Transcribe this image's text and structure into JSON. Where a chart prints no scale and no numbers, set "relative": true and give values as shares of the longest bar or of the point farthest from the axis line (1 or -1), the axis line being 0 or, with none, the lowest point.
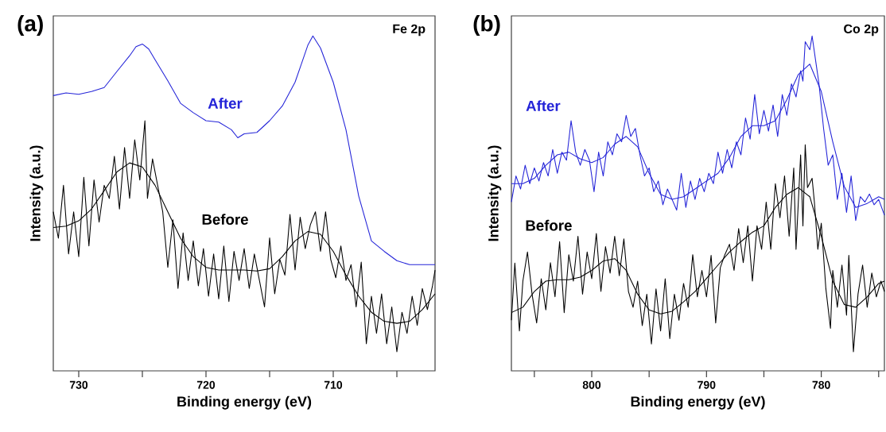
{
  "chart_data": [
    {
      "type": "line",
      "relative": true,
      "xlabel": "Binding energy (eV)",
      "ylabel": "Intensity (a.u.)",
      "annotations": [
        "(a)",
        "Fe 2p"
      ],
      "xlim": [
        732,
        702
      ],
      "xticks": [
        730,
        {
          "value": 725,
          "label": null
        },
        720,
        {
          "value": 715,
          "label": null
        },
        710,
        {
          "value": 705,
          "label": null
        }
      ],
      "series": [
        {
          "name": "After",
          "color": "#2424d8",
          "x": [
            732,
            731,
            730,
            729,
            728,
            727,
            726,
            725.5,
            725,
            724.5,
            724,
            723,
            722,
            721,
            720,
            719,
            718,
            717.5,
            717,
            716,
            715,
            714,
            713,
            712.5,
            712,
            711.6,
            711,
            710,
            709,
            708,
            707,
            706,
            705,
            704,
            703,
            702
          ],
          "values": [
            0.822,
            0.83,
            0.826,
            0.834,
            0.846,
            0.894,
            0.941,
            0.968,
            0.976,
            0.961,
            0.929,
            0.866,
            0.799,
            0.771,
            0.747,
            0.743,
            0.72,
            0.696,
            0.708,
            0.712,
            0.747,
            0.791,
            0.862,
            0.917,
            0.972,
            1.0,
            0.964,
            0.862,
            0.72,
            0.522,
            0.388,
            0.357,
            0.329,
            0.317,
            0.317,
            0.317
          ]
        },
        {
          "name": "Before",
          "color": "#000000",
          "x": [
            732,
            731.6,
            731.2,
            730.8,
            730.4,
            730,
            729.6,
            729.2,
            728.8,
            728.4,
            728,
            727.6,
            727.2,
            726.8,
            726.4,
            726,
            725.6,
            725.2,
            724.8,
            724.6,
            724.2,
            723.8,
            723.4,
            723,
            722.6,
            722.2,
            721.8,
            721.4,
            721,
            720.6,
            720.2,
            719.8,
            719.4,
            719,
            718.6,
            718.2,
            717.8,
            717.4,
            717,
            716.6,
            716.2,
            715.8,
            715.4,
            715,
            714.6,
            714.2,
            713.8,
            713.4,
            713,
            712.6,
            712.2,
            711.8,
            711.4,
            711,
            710.6,
            710.2,
            709.8,
            709.4,
            709,
            708.6,
            708.2,
            707.8,
            707.4,
            707,
            706.6,
            706.2,
            705.8,
            705.4,
            705,
            704.6,
            704.2,
            703.8,
            703.4,
            703,
            702.6,
            702.2,
            702
          ],
          "values": [
            0.475,
            0.396,
            0.554,
            0.349,
            0.475,
            0.341,
            0.578,
            0.373,
            0.57,
            0.444,
            0.554,
            0.515,
            0.641,
            0.483,
            0.667,
            0.515,
            0.69,
            0.57,
            0.747,
            0.515,
            0.633,
            0.554,
            0.475,
            0.309,
            0.451,
            0.246,
            0.412,
            0.27,
            0.388,
            0.254,
            0.365,
            0.223,
            0.349,
            0.215,
            0.373,
            0.207,
            0.357,
            0.27,
            0.365,
            0.246,
            0.349,
            0.27,
            0.191,
            0.397,
            0.23,
            0.333,
            0.286,
            0.467,
            0.301,
            0.459,
            0.365,
            0.436,
            0.475,
            0.357,
            0.475,
            0.333,
            0.278,
            0.373,
            0.27,
            0.317,
            0.191,
            0.325,
            0.081,
            0.223,
            0.112,
            0.23,
            0.081,
            0.191,
            0.057,
            0.175,
            0.112,
            0.223,
            0.136,
            0.246,
            0.183,
            0.254,
            0.301
          ]
        },
        {
          "color": "#000000",
          "x": [
            732,
            731,
            730,
            729,
            728,
            727,
            726,
            725,
            724,
            723,
            722,
            721,
            720,
            719,
            718,
            717,
            716,
            715,
            714,
            713,
            712,
            711,
            710,
            709,
            708,
            707,
            706,
            705,
            704,
            703,
            702
          ],
          "values": [
            0.428,
            0.432,
            0.448,
            0.483,
            0.538,
            0.594,
            0.621,
            0.609,
            0.554,
            0.475,
            0.396,
            0.341,
            0.309,
            0.301,
            0.301,
            0.301,
            0.298,
            0.305,
            0.341,
            0.388,
            0.416,
            0.408,
            0.357,
            0.286,
            0.223,
            0.175,
            0.148,
            0.142,
            0.148,
            0.183,
            0.23
          ]
        }
      ]
    },
    {
      "type": "line",
      "relative": true,
      "xlabel": "Binding energy (eV)",
      "ylabel": "Intensity (a.u.)",
      "annotations": [
        "(b)",
        "Co 2p"
      ],
      "xlim": [
        807,
        774.5
      ],
      "xticks": [
        {
          "value": 805,
          "label": null
        },
        800,
        {
          "value": 795,
          "label": null
        },
        790,
        {
          "value": 785,
          "label": null
        },
        780,
        {
          "value": 775,
          "label": null
        }
      ],
      "series": [
        {
          "name": "After",
          "color": "#2424d8",
          "x": [
            807,
            806.6,
            806.2,
            805.8,
            805.4,
            805,
            804.6,
            804.2,
            803.8,
            803.4,
            803,
            802.6,
            802.2,
            801.8,
            801.4,
            801,
            800.6,
            800.2,
            799.8,
            799.4,
            799,
            798.6,
            798.2,
            797.8,
            797.4,
            797,
            796.6,
            796.2,
            795.8,
            795.4,
            795,
            794.6,
            794.2,
            793.8,
            793.4,
            793,
            792.6,
            792.2,
            791.8,
            791.4,
            791,
            790.6,
            790.2,
            789.8,
            789.4,
            789,
            788.6,
            788.2,
            787.8,
            787.4,
            787,
            786.6,
            786.2,
            785.8,
            785.4,
            785,
            784.6,
            784.2,
            783.8,
            783.4,
            783,
            782.6,
            782.2,
            781.8,
            781.6,
            781.4,
            781,
            780.8,
            780.5,
            780.2,
            779.8,
            779.4,
            779,
            778.6,
            778.2,
            777.8,
            777.4,
            777,
            776.6,
            776.2,
            775.8,
            775.4,
            775,
            774.5
          ],
          "values": [
            0.504,
            0.582,
            0.543,
            0.614,
            0.559,
            0.606,
            0.567,
            0.622,
            0.582,
            0.661,
            0.59,
            0.653,
            0.629,
            0.747,
            0.653,
            0.614,
            0.661,
            0.629,
            0.535,
            0.653,
            0.582,
            0.684,
            0.645,
            0.708,
            0.684,
            0.763,
            0.7,
            0.724,
            0.645,
            0.582,
            0.606,
            0.535,
            0.567,
            0.496,
            0.543,
            0.512,
            0.48,
            0.59,
            0.488,
            0.567,
            0.512,
            0.575,
            0.535,
            0.59,
            0.559,
            0.653,
            0.59,
            0.661,
            0.606,
            0.684,
            0.645,
            0.755,
            0.692,
            0.825,
            0.708,
            0.778,
            0.716,
            0.794,
            0.7,
            0.825,
            0.763,
            0.857,
            0.818,
            0.896,
            0.865,
            0.983,
            0.959,
            1.0,
            0.928,
            0.857,
            0.724,
            0.614,
            0.645,
            0.512,
            0.59,
            0.473,
            0.582,
            0.449,
            0.52,
            0.504,
            0.528,
            0.496,
            0.512,
            0.465
          ]
        },
        {
          "color": "#2424d8",
          "x": [
            807,
            806,
            805,
            804,
            803,
            802,
            801,
            800,
            799,
            798,
            797,
            796,
            795,
            794,
            793,
            792,
            791,
            790,
            789,
            788,
            787,
            786,
            785,
            784,
            783,
            782,
            781,
            780,
            779,
            778,
            777,
            776,
            775,
            774.5
          ],
          "values": [
            0.559,
            0.559,
            0.575,
            0.614,
            0.645,
            0.653,
            0.633,
            0.622,
            0.637,
            0.677,
            0.7,
            0.669,
            0.59,
            0.527,
            0.512,
            0.52,
            0.543,
            0.567,
            0.59,
            0.637,
            0.7,
            0.732,
            0.732,
            0.747,
            0.81,
            0.885,
            0.916,
            0.834,
            0.684,
            0.551,
            0.488,
            0.5,
            0.52,
            0.512
          ]
        },
        {
          "name": "Before",
          "color": "#000000",
          "x": [
            807,
            806.7,
            806.3,
            806,
            805.6,
            805.2,
            804.8,
            804.4,
            804,
            803.6,
            803.2,
            802.8,
            802.4,
            802,
            801.6,
            801.2,
            800.8,
            800.4,
            800,
            799.6,
            799.2,
            798.8,
            798.4,
            798,
            797.6,
            797.2,
            796.8,
            796.4,
            796,
            795.6,
            795.2,
            794.8,
            794.4,
            794,
            793.6,
            793.2,
            792.8,
            792.4,
            792,
            791.6,
            791.2,
            790.8,
            790.4,
            790,
            789.6,
            789.2,
            788.8,
            788.4,
            788,
            787.6,
            787.2,
            786.8,
            786.4,
            786,
            785.6,
            785.2,
            784.8,
            784.4,
            784,
            783.6,
            783.2,
            782.8,
            782.4,
            782.2,
            781.8,
            781.6,
            781.4,
            781.2,
            780.8,
            780.6,
            780.3,
            780,
            779.6,
            779.2,
            779,
            778.6,
            778.2,
            777.8,
            777.6,
            777.2,
            776.8,
            776.4,
            776,
            775.6,
            775.2,
            774.8,
            774.5
          ],
          "values": [
            0.151,
            0.322,
            0.119,
            0.268,
            0.355,
            0.229,
            0.143,
            0.275,
            0.182,
            0.323,
            0.221,
            0.386,
            0.174,
            0.347,
            0.268,
            0.402,
            0.229,
            0.355,
            0.275,
            0.41,
            0.237,
            0.371,
            0.292,
            0.402,
            0.284,
            0.394,
            0.237,
            0.19,
            0.268,
            0.135,
            0.229,
            0.08,
            0.245,
            0.119,
            0.275,
            0.096,
            0.229,
            0.151,
            0.261,
            0.19,
            0.347,
            0.221,
            0.3,
            0.221,
            0.345,
            0.143,
            0.308,
            0.347,
            0.378,
            0.3,
            0.425,
            0.323,
            0.433,
            0.268,
            0.433,
            0.363,
            0.504,
            0.363,
            0.559,
            0.457,
            0.582,
            0.402,
            0.606,
            0.363,
            0.645,
            0.433,
            0.675,
            0.547,
            0.575,
            0.504,
            0.363,
            0.441,
            0.245,
            0.127,
            0.3,
            0.19,
            0.316,
            0.166,
            0.345,
            0.057,
            0.229,
            0.316,
            0.19,
            0.292,
            0.221,
            0.268,
            0.237
          ]
        },
        {
          "color": "#000000",
          "x": [
            807,
            806,
            805,
            804,
            803,
            802,
            801,
            800,
            799,
            798,
            797,
            796,
            795,
            794,
            793,
            792,
            791,
            790,
            789,
            788,
            787,
            786,
            785,
            784,
            783,
            782,
            781,
            780,
            779,
            778,
            777,
            776,
            775,
            774.5
          ],
          "values": [
            0.174,
            0.19,
            0.237,
            0.268,
            0.272,
            0.272,
            0.28,
            0.3,
            0.328,
            0.335,
            0.3,
            0.229,
            0.182,
            0.17,
            0.178,
            0.206,
            0.237,
            0.276,
            0.316,
            0.355,
            0.386,
            0.414,
            0.433,
            0.488,
            0.527,
            0.547,
            0.52,
            0.402,
            0.268,
            0.198,
            0.19,
            0.221,
            0.261,
            0.268
          ]
        }
      ]
    }
  ]
}
